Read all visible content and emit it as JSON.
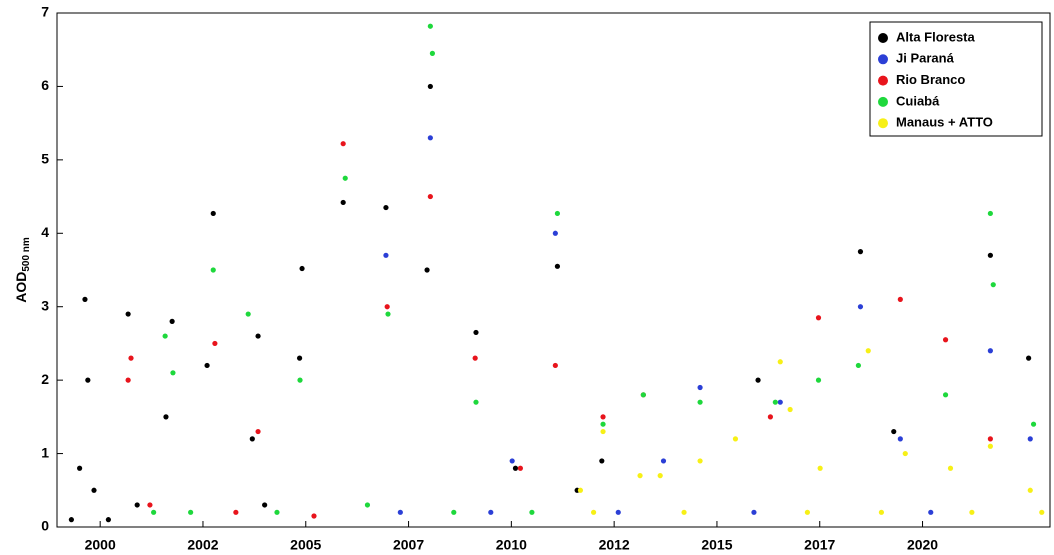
{
  "chart_data": {
    "type": "scatter",
    "y_label": "AOD",
    "y_label_sub": "500 nm",
    "xlim": [
      1998.95,
      2023.1
    ],
    "xticks": [
      {
        "value": 2000,
        "label": "2000"
      },
      {
        "value": 2002.5,
        "label": "2002"
      },
      {
        "value": 2005,
        "label": "2005"
      },
      {
        "value": 2007.5,
        "label": "2007"
      },
      {
        "value": 2010,
        "label": "2010"
      },
      {
        "value": 2012.5,
        "label": "2012"
      },
      {
        "value": 2015,
        "label": "2015"
      },
      {
        "value": 2017.5,
        "label": "2017"
      },
      {
        "value": 2020,
        "label": "2020"
      }
    ],
    "ylim": [
      0,
      7
    ],
    "yticks": [
      0,
      1,
      2,
      3,
      4,
      5,
      6,
      7
    ],
    "legend": "top-right",
    "series": [
      {
        "name": "Alta Floresta",
        "color": "#000000",
        "x": [
          1999.3,
          1999.5,
          1999.63,
          1999.7,
          1999.85,
          2000.2,
          2000.68,
          2000.9,
          2001.6,
          2001.75,
          2002.6,
          2002.75,
          2003.7,
          2003.84,
          2004.0,
          2004.85,
          2004.91,
          2005.91,
          2006.95,
          2007.95,
          2008.03,
          2009.14,
          2010.1,
          2011.12,
          2011.6,
          2012.2,
          2016.0,
          2018.49,
          2019.3,
          2021.65,
          2022.58
        ],
        "values": [
          0.1,
          0.8,
          3.1,
          2.0,
          0.5,
          0.1,
          2.9,
          0.3,
          1.5,
          2.8,
          2.2,
          4.27,
          1.2,
          2.6,
          0.3,
          2.3,
          3.52,
          4.42,
          4.35,
          3.5,
          6.0,
          2.65,
          0.8,
          3.55,
          0.5,
          0.9,
          2.0,
          3.75,
          1.3,
          3.7,
          2.3
        ]
      },
      {
        "name": "Ji Paraná",
        "color": "#2b3fd6",
        "x": [
          2006.95,
          2007.3,
          2008.03,
          2009.5,
          2010.02,
          2011.07,
          2012.6,
          2013.7,
          2014.59,
          2015.9,
          2016.54,
          2018.49,
          2019.46,
          2020.2,
          2021.65,
          2022.62
        ],
        "values": [
          3.7,
          0.2,
          5.3,
          0.2,
          0.9,
          4.0,
          0.2,
          0.9,
          1.9,
          0.2,
          1.7,
          3.0,
          1.2,
          0.2,
          2.4,
          1.2
        ]
      },
      {
        "name": "Rio Branco",
        "color": "#e8141c",
        "x": [
          2000.68,
          2000.75,
          2001.21,
          2002.79,
          2003.3,
          2003.84,
          2005.2,
          2005.91,
          2006.98,
          2008.03,
          2009.12,
          2010.22,
          2011.07,
          2012.23,
          2013.21,
          2016.3,
          2017.47,
          2019.46,
          2020.56,
          2021.65
        ],
        "values": [
          2.0,
          2.3,
          0.3,
          2.5,
          0.2,
          1.3,
          0.15,
          5.22,
          3.0,
          4.5,
          2.3,
          0.8,
          2.2,
          1.5,
          1.8,
          1.5,
          2.85,
          3.1,
          2.55,
          1.2
        ]
      },
      {
        "name": "Cuiabá",
        "color": "#1ed83c",
        "x": [
          2001.3,
          2001.58,
          2001.77,
          2002.2,
          2002.75,
          2003.6,
          2004.3,
          2004.86,
          2005.96,
          2006.5,
          2007.0,
          2008.03,
          2008.08,
          2008.6,
          2009.14,
          2010.5,
          2011.12,
          2012.23,
          2013.21,
          2014.59,
          2016.42,
          2017.47,
          2018.44,
          2020.56,
          2021.65,
          2021.72,
          2022.7
        ],
        "values": [
          0.2,
          2.6,
          2.1,
          0.2,
          3.5,
          2.9,
          0.2,
          2.0,
          4.75,
          0.3,
          2.9,
          6.82,
          6.45,
          0.2,
          1.7,
          0.2,
          4.27,
          1.4,
          1.8,
          1.7,
          1.7,
          2.0,
          2.2,
          1.8,
          4.27,
          3.3,
          1.4
        ]
      },
      {
        "name": "Manaus + ATTO",
        "color": "#f7f016",
        "x": [
          2011.68,
          2012.0,
          2012.23,
          2013.13,
          2013.62,
          2014.2,
          2014.59,
          2015.45,
          2016.54,
          2016.78,
          2017.2,
          2017.51,
          2018.68,
          2019.0,
          2019.58,
          2020.68,
          2021.2,
          2021.65,
          2022.62,
          2022.9
        ],
        "values": [
          0.5,
          0.2,
          1.3,
          0.7,
          0.7,
          0.2,
          0.9,
          1.2,
          2.25,
          1.6,
          0.2,
          0.8,
          2.4,
          0.2,
          1.0,
          0.8,
          0.2,
          1.1,
          0.5,
          0.2
        ]
      }
    ]
  }
}
